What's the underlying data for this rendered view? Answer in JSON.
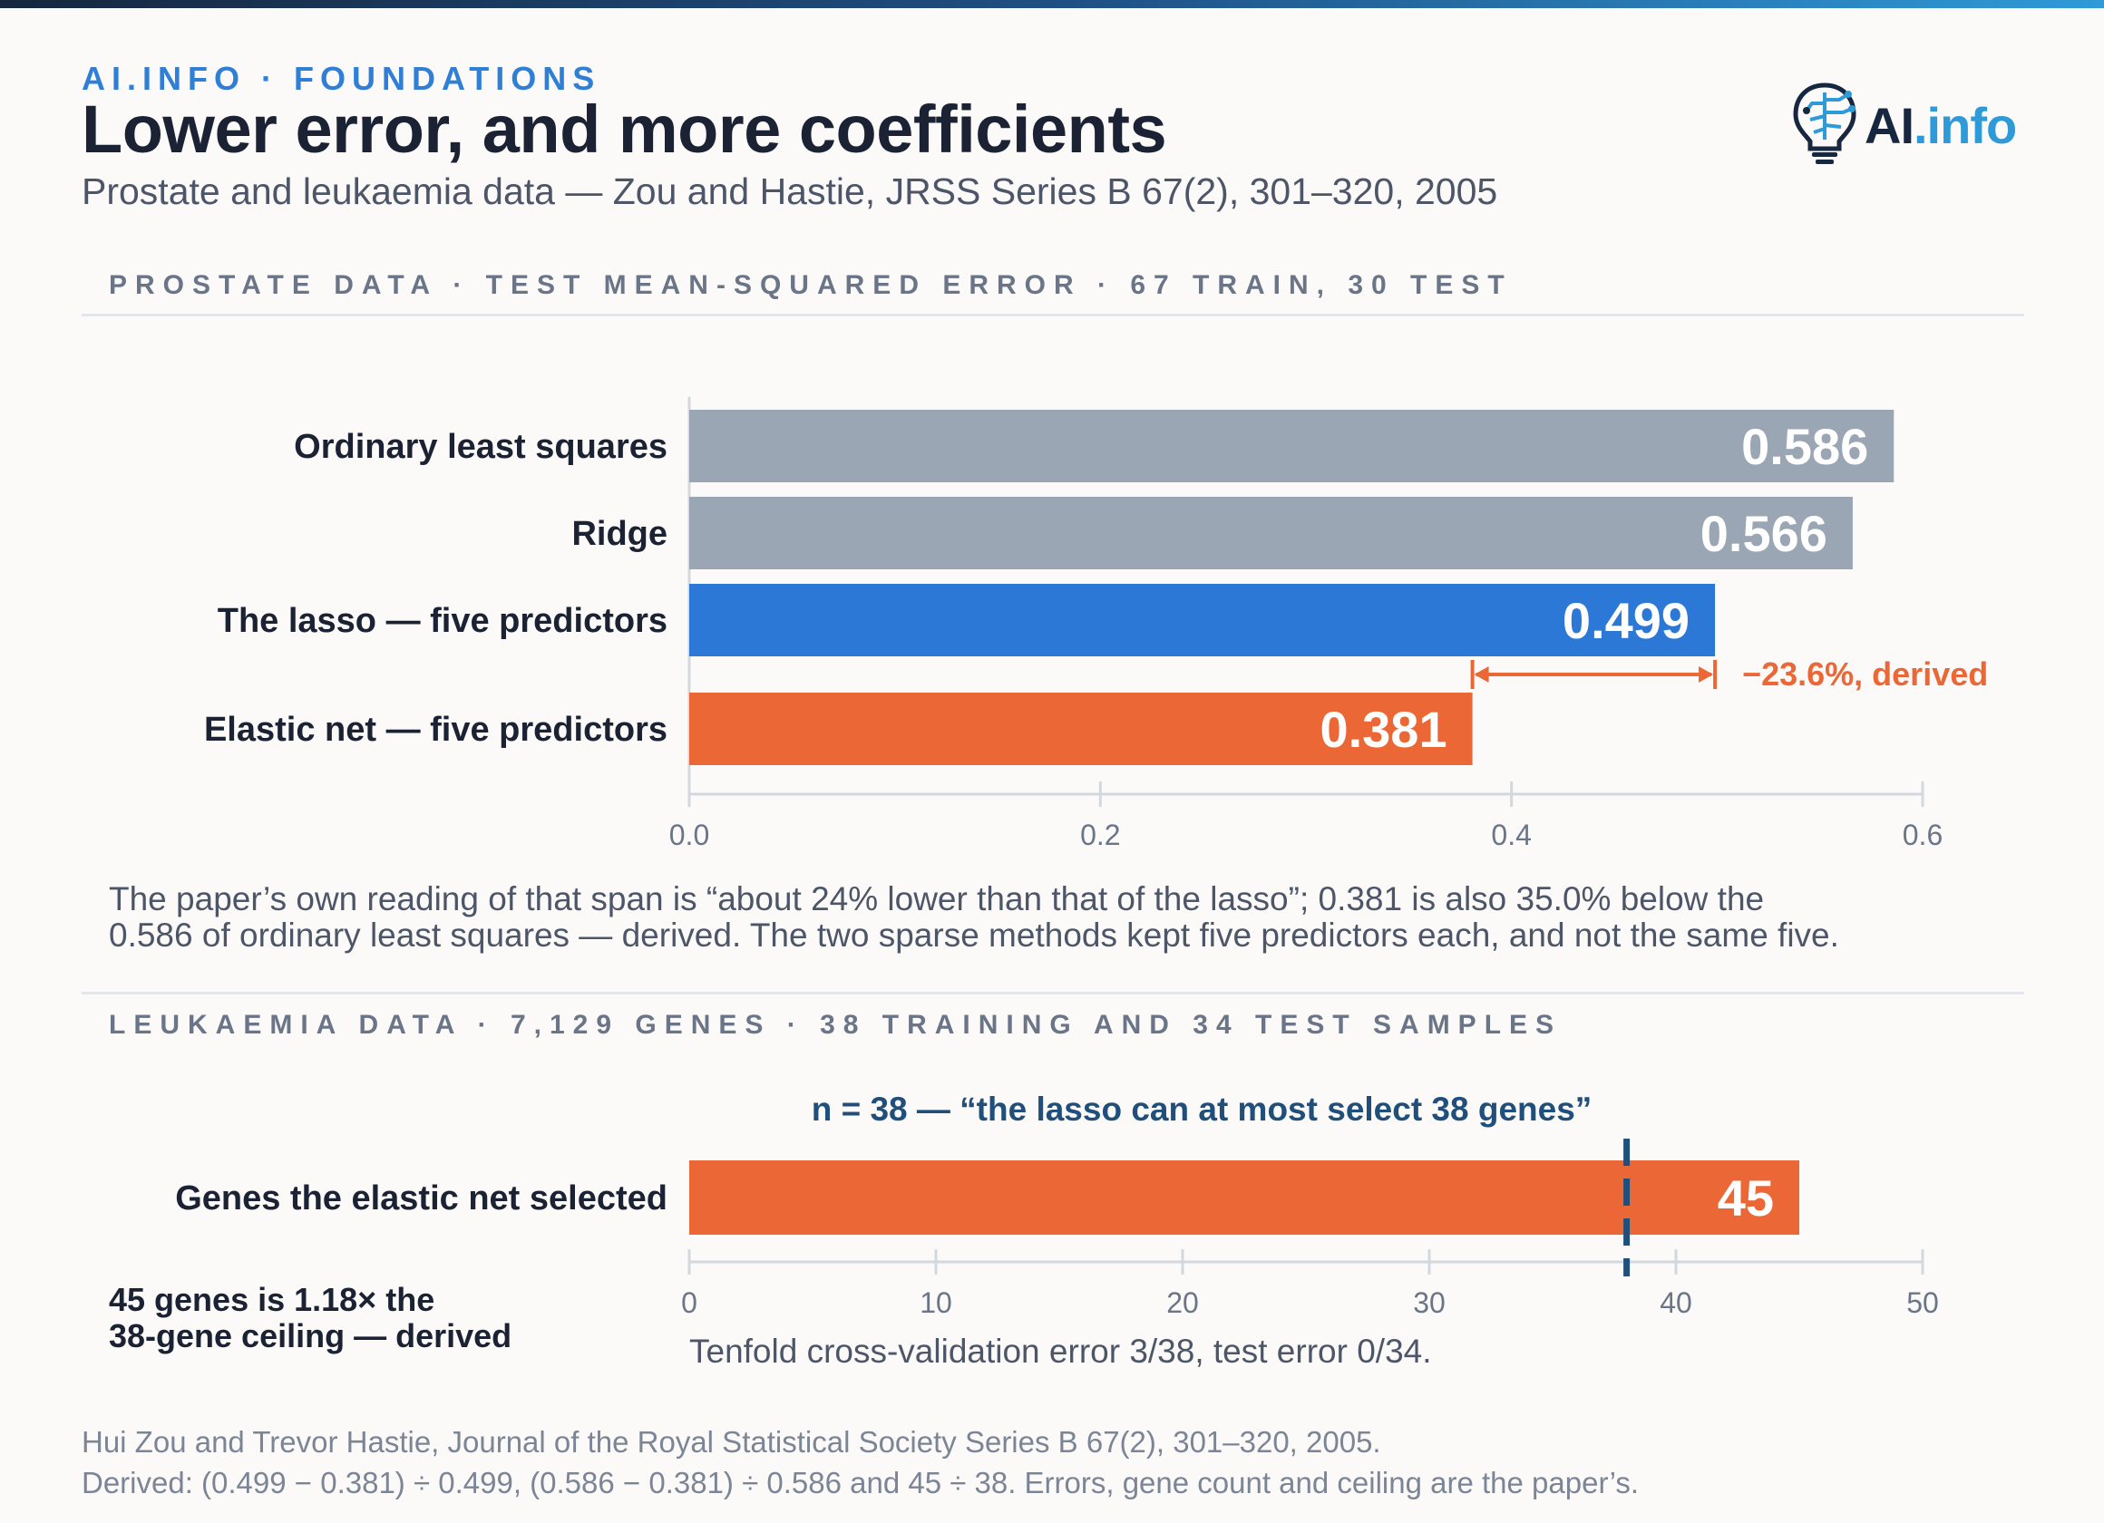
{
  "header": {
    "eyebrow": "AI.INFO · FOUNDATIONS",
    "title": "Lower error, and more coefficients",
    "subtitle": "Prostate and leukaemia data — Zou and Hastie, JRSS Series B 67(2), 301–320, 2005",
    "logo_main": "AI",
    "logo_suffix": ".info"
  },
  "prostate": {
    "heading": "PROSTATE DATA · TEST MEAN-SQUARED ERROR · 67 TRAIN, 30 TEST",
    "paragraph": [
      "The paper’s own reading of that span is “about 24% lower than that of the lasso”; 0.381 is also 35.0% below the",
      "0.586 of ordinary least squares — derived. The two sparse methods kept five predictors each, and not the same five."
    ]
  },
  "leukaemia": {
    "heading": "LEUKAEMIA DATA · 7,129 GENES · 38 TRAINING AND 34 TEST SAMPLES",
    "side_note": [
      "45 genes is 1.18× the",
      "38-gene ceiling — derived"
    ],
    "cv_note": "Tenfold cross-validation error 3/38, test error 0/34."
  },
  "chart_data": [
    {
      "type": "bar",
      "orientation": "horizontal",
      "categories": [
        "Ordinary least squares",
        "Ridge",
        "The lasso — five predictors",
        "Elastic net — five predictors"
      ],
      "values": [
        0.586,
        0.566,
        0.499,
        0.381
      ],
      "value_labels": [
        "0.586",
        "0.566",
        "0.499",
        "0.381"
      ],
      "xlim": [
        0,
        0.6
      ],
      "x_ticks": [
        0.0,
        0.2,
        0.4,
        0.6
      ],
      "x_tick_labels": [
        "0.0",
        "0.2",
        "0.4",
        "0.6"
      ],
      "colors": [
        "#9aa6b4",
        "#9aa6b4",
        "#2b78d6",
        "#eb6836"
      ],
      "annotation": {
        "from": 0.381,
        "to": 0.499,
        "label": "−23.6%, derived",
        "color": "#eb6836"
      },
      "grid": false
    },
    {
      "type": "bar",
      "orientation": "horizontal",
      "categories": [
        "Genes the elastic net selected"
      ],
      "values": [
        45
      ],
      "value_labels": [
        "45"
      ],
      "xlim": [
        0,
        50
      ],
      "x_ticks": [
        0,
        10,
        20,
        30,
        40,
        50
      ],
      "x_tick_labels": [
        "0",
        "10",
        "20",
        "30",
        "40",
        "50"
      ],
      "colors": [
        "#eb6836"
      ],
      "reference_line": {
        "x": 38,
        "label": "n = 38 — “the lasso can at most select 38 genes”",
        "color": "#1f4f7a"
      },
      "grid": false
    }
  ],
  "footer": [
    "Hui Zou and Trevor Hastie, Journal of the Royal Statistical Society Series B 67(2), 301–320, 2005.",
    "Derived: (0.499 − 0.381) ÷ 0.499, (0.586 − 0.381) ÷ 0.586 and 45 ÷ 38. Errors, gene count and ceiling are the paper’s."
  ]
}
